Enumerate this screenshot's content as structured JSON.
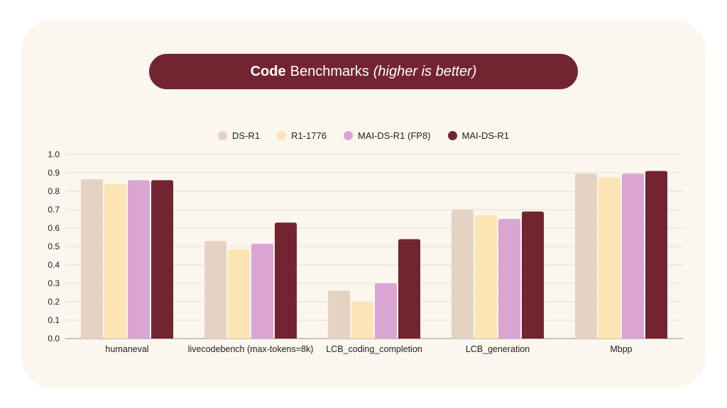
{
  "title": {
    "bold": "Code",
    "regular": "Benchmarks",
    "italic": "(higher is better)"
  },
  "colors": {
    "background_card": "#fbf6ee",
    "title_pill": "#722530",
    "grid": "#e6ded2"
  },
  "chart_data": {
    "type": "bar",
    "title": "Code Benchmarks (higher is better)",
    "xlabel": "",
    "ylabel": "",
    "ylim": [
      0,
      1.0
    ],
    "yticks": [
      "0.0",
      "0.1",
      "0.2",
      "0.3",
      "0.4",
      "0.5",
      "0.6",
      "0.7",
      "0.8",
      "0.9",
      "1.0"
    ],
    "grid": true,
    "legend_position": "top-center",
    "categories": [
      "humaneval",
      "livecodebench (max-tokens=8k)",
      "LCB_coding_completion",
      "LCB_generation",
      "Mbpp"
    ],
    "series": [
      {
        "name": "DS-R1",
        "color": "#e4d3c3",
        "values": [
          0.865,
          0.53,
          0.26,
          0.7,
          0.895
        ]
      },
      {
        "name": "R1-1776",
        "color": "#fde4b4",
        "values": [
          0.84,
          0.485,
          0.2,
          0.67,
          0.875
        ]
      },
      {
        "name": "MAI-DS-R1 (FP8)",
        "color": "#d9a6d4",
        "values": [
          0.86,
          0.515,
          0.3,
          0.65,
          0.895
        ]
      },
      {
        "name": "MAI-DS-R1",
        "color": "#722530",
        "values": [
          0.86,
          0.63,
          0.54,
          0.69,
          0.91
        ]
      }
    ]
  }
}
